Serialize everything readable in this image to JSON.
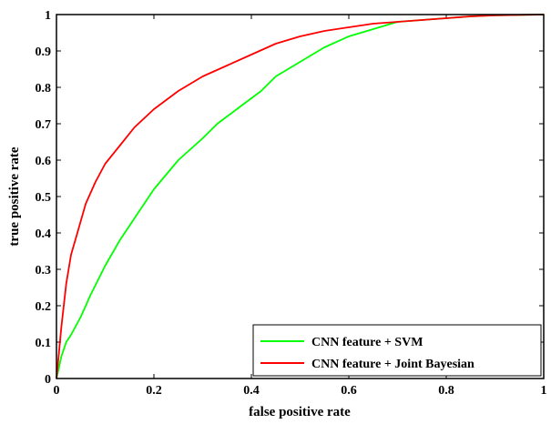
{
  "chart_data": {
    "type": "line",
    "title": "",
    "xlabel": "false positive rate",
    "ylabel": "true positive rate",
    "xlim": [
      0,
      1
    ],
    "ylim": [
      0,
      1
    ],
    "grid": false,
    "legend_position": "bottom-right",
    "x_ticks": [
      0,
      0.2,
      0.4,
      0.6,
      0.8,
      1
    ],
    "y_ticks": [
      0,
      0.1,
      0.2,
      0.3,
      0.4,
      0.5,
      0.6,
      0.7,
      0.8,
      0.9,
      1
    ],
    "x_tick_labels": [
      "0",
      "0.2",
      "0.4",
      "0.6",
      "0.8",
      "1"
    ],
    "y_tick_labels": [
      "0",
      "0.1",
      "0.2",
      "0.3",
      "0.4",
      "0.5",
      "0.6",
      "0.7",
      "0.8",
      "0.9",
      "1"
    ],
    "series": [
      {
        "name": "CNN feature + SVM",
        "color": "#00ff00",
        "x": [
          0,
          0.005,
          0.01,
          0.02,
          0.03,
          0.05,
          0.07,
          0.1,
          0.13,
          0.16,
          0.2,
          0.25,
          0.3,
          0.33,
          0.38,
          0.42,
          0.45,
          0.5,
          0.55,
          0.6,
          0.65,
          0.7,
          0.75,
          0.8,
          0.85,
          0.9,
          1
        ],
        "y": [
          0,
          0.03,
          0.06,
          0.1,
          0.12,
          0.17,
          0.23,
          0.31,
          0.38,
          0.44,
          0.52,
          0.6,
          0.66,
          0.7,
          0.75,
          0.79,
          0.83,
          0.87,
          0.91,
          0.94,
          0.96,
          0.98,
          0.985,
          0.99,
          0.995,
          0.998,
          1
        ]
      },
      {
        "name": "CNN feature + Joint Bayesian",
        "color": "#ff0000",
        "x": [
          0,
          0.005,
          0.01,
          0.015,
          0.02,
          0.03,
          0.045,
          0.06,
          0.08,
          0.1,
          0.13,
          0.16,
          0.2,
          0.25,
          0.3,
          0.35,
          0.4,
          0.45,
          0.5,
          0.55,
          0.6,
          0.65,
          0.7,
          0.75,
          0.8,
          0.85,
          0.9,
          1
        ],
        "y": [
          0,
          0.07,
          0.14,
          0.2,
          0.26,
          0.34,
          0.41,
          0.48,
          0.54,
          0.59,
          0.64,
          0.69,
          0.74,
          0.79,
          0.83,
          0.86,
          0.89,
          0.92,
          0.94,
          0.955,
          0.965,
          0.975,
          0.98,
          0.985,
          0.99,
          0.995,
          0.998,
          1
        ]
      }
    ]
  }
}
